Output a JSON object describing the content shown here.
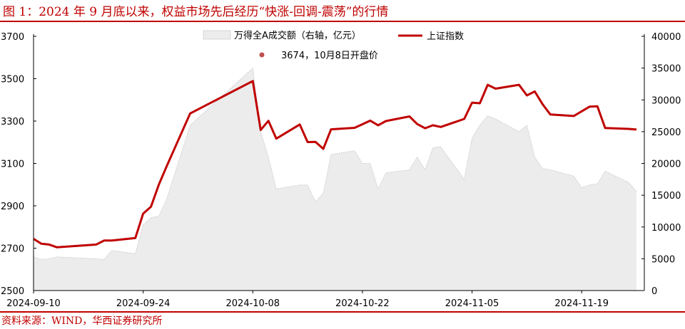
{
  "title": "图 1：2024 年 9 月底以来，权益市场先后经历“快涨-回调-震荡”的行情",
  "source": "资料来源：WIND，华西证券研究所",
  "colors": {
    "accent": "#c00000",
    "line": "#c00000",
    "area_fill": "#ececec",
    "area_stroke": "#bdbdbd",
    "marker": "#c0504d"
  },
  "legend": {
    "area_label": "万得全A成交额（右轴，亿元）",
    "line_label": "上证指数",
    "marker_label": "3674，10月8日开盘价"
  },
  "chart_data": {
    "type": "line",
    "title": "",
    "xlabel": "",
    "ylabel": "",
    "x_tick_labels": [
      "2024-09-10",
      "2024-09-24",
      "2024-10-08",
      "2024-10-22",
      "2024-11-05",
      "2024-11-19"
    ],
    "x_ticks": [
      {
        "label": "2024-09-10",
        "date": "2024-09-10"
      },
      {
        "label": "2024-09-24",
        "date": "2024-09-24"
      },
      {
        "label": "2024-10-08",
        "date": "2024-10-08"
      },
      {
        "label": "2024-10-22",
        "date": "2024-10-22"
      },
      {
        "label": "2024-11-05",
        "date": "2024-11-05"
      },
      {
        "label": "2024-11-19",
        "date": "2024-11-19"
      }
    ],
    "x_range": [
      "2024-09-10",
      "2024-11-27"
    ],
    "y_left": {
      "range": [
        2500,
        3700
      ],
      "ticks": [
        2500,
        2700,
        2900,
        3100,
        3300,
        3500,
        3700
      ]
    },
    "y_right": {
      "range": [
        0,
        40000
      ],
      "ticks": [
        0,
        5000,
        10000,
        15000,
        20000,
        25000,
        30000,
        35000,
        40000
      ]
    },
    "grid": false,
    "legend_position": "top",
    "series": [
      {
        "name": "上证指数",
        "type": "line",
        "axis": "left",
        "points": [
          [
            "2024-09-10",
            2744
          ],
          [
            "2024-09-11",
            2721
          ],
          [
            "2024-09-12",
            2717
          ],
          [
            "2024-09-13",
            2704
          ],
          [
            "2024-09-18",
            2717
          ],
          [
            "2024-09-19",
            2736
          ],
          [
            "2024-09-20",
            2736
          ],
          [
            "2024-09-23",
            2748
          ],
          [
            "2024-09-24",
            2863
          ],
          [
            "2024-09-25",
            2896
          ],
          [
            "2024-09-26",
            3000
          ],
          [
            "2024-09-27",
            3087
          ],
          [
            "2024-09-30",
            3336
          ],
          [
            "2024-10-08",
            3489
          ],
          [
            "2024-10-09",
            3258
          ],
          [
            "2024-10-10",
            3301
          ],
          [
            "2024-10-11",
            3217
          ],
          [
            "2024-10-14",
            3284
          ],
          [
            "2024-10-15",
            3201
          ],
          [
            "2024-10-16",
            3202
          ],
          [
            "2024-10-17",
            3169
          ],
          [
            "2024-10-18",
            3261
          ],
          [
            "2024-10-21",
            3268
          ],
          [
            "2024-10-22",
            3285
          ],
          [
            "2024-10-23",
            3302
          ],
          [
            "2024-10-24",
            3280
          ],
          [
            "2024-10-25",
            3300
          ],
          [
            "2024-10-28",
            3322
          ],
          [
            "2024-10-29",
            3286
          ],
          [
            "2024-10-30",
            3266
          ],
          [
            "2024-10-31",
            3280
          ],
          [
            "2024-11-01",
            3272
          ],
          [
            "2024-11-04",
            3310
          ],
          [
            "2024-11-05",
            3387
          ],
          [
            "2024-11-06",
            3384
          ],
          [
            "2024-11-07",
            3471
          ],
          [
            "2024-11-08",
            3453
          ],
          [
            "2024-11-11",
            3471
          ],
          [
            "2024-11-12",
            3421
          ],
          [
            "2024-11-13",
            3440
          ],
          [
            "2024-11-14",
            3380
          ],
          [
            "2024-11-15",
            3331
          ],
          [
            "2024-11-18",
            3324
          ],
          [
            "2024-11-19",
            3346
          ],
          [
            "2024-11-20",
            3368
          ],
          [
            "2024-11-21",
            3370
          ],
          [
            "2024-11-22",
            3267
          ],
          [
            "2024-11-25",
            3263
          ],
          [
            "2024-11-26",
            3260
          ]
        ]
      },
      {
        "name": "万得全A成交额（右轴，亿元）",
        "type": "area",
        "axis": "right",
        "points": [
          [
            "2024-09-10",
            5300
          ],
          [
            "2024-09-11",
            4900
          ],
          [
            "2024-09-12",
            5000
          ],
          [
            "2024-09-13",
            5300
          ],
          [
            "2024-09-18",
            5000
          ],
          [
            "2024-09-19",
            4900
          ],
          [
            "2024-09-20",
            6300
          ],
          [
            "2024-09-23",
            5800
          ],
          [
            "2024-09-24",
            10300
          ],
          [
            "2024-09-25",
            11500
          ],
          [
            "2024-09-26",
            11700
          ],
          [
            "2024-09-27",
            14400
          ],
          [
            "2024-09-30",
            26000
          ],
          [
            "2024-10-08",
            35000
          ],
          [
            "2024-10-09",
            25000
          ],
          [
            "2024-10-10",
            21000
          ],
          [
            "2024-10-11",
            16000
          ],
          [
            "2024-10-14",
            16600
          ],
          [
            "2024-10-15",
            16600
          ],
          [
            "2024-10-16",
            14000
          ],
          [
            "2024-10-17",
            15300
          ],
          [
            "2024-10-18",
            21400
          ],
          [
            "2024-10-21",
            22000
          ],
          [
            "2024-10-22",
            20000
          ],
          [
            "2024-10-23",
            20000
          ],
          [
            "2024-10-24",
            16000
          ],
          [
            "2024-10-25",
            18500
          ],
          [
            "2024-10-28",
            19000
          ],
          [
            "2024-10-29",
            21000
          ],
          [
            "2024-10-30",
            19000
          ],
          [
            "2024-10-31",
            22500
          ],
          [
            "2024-11-01",
            22600
          ],
          [
            "2024-11-04",
            17500
          ],
          [
            "2024-11-05",
            24000
          ],
          [
            "2024-11-06",
            26000
          ],
          [
            "2024-11-07",
            27500
          ],
          [
            "2024-11-08",
            27000
          ],
          [
            "2024-11-11",
            25000
          ],
          [
            "2024-11-12",
            26000
          ],
          [
            "2024-11-13",
            21000
          ],
          [
            "2024-11-14",
            19200
          ],
          [
            "2024-11-15",
            19000
          ],
          [
            "2024-11-18",
            18000
          ],
          [
            "2024-11-19",
            16200
          ],
          [
            "2024-11-20",
            16600
          ],
          [
            "2024-11-21",
            16800
          ],
          [
            "2024-11-22",
            18800
          ],
          [
            "2024-11-25",
            17000
          ],
          [
            "2024-11-26",
            15600
          ]
        ]
      }
    ],
    "annotation": {
      "label": "3674，10月8日开盘价",
      "date": "2024-10-08",
      "value": 3674
    }
  }
}
